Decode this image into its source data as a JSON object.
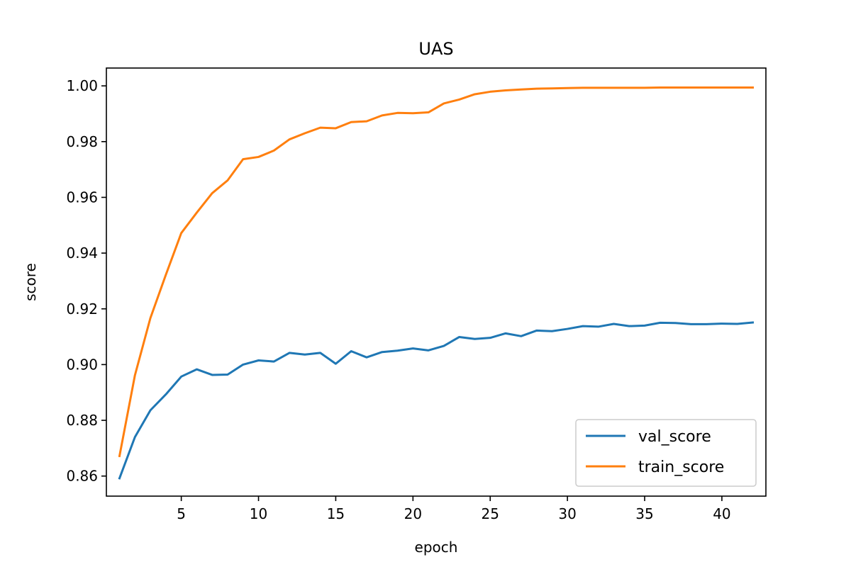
{
  "chart_data": {
    "type": "line",
    "title": "UAS",
    "xlabel": "epoch",
    "ylabel": "score",
    "xlim": [
      0.15,
      42.85
    ],
    "ylim": [
      0.8528,
      1.0064
    ],
    "xticks": [
      5,
      10,
      15,
      20,
      25,
      30,
      35,
      40
    ],
    "yticks": [
      0.86,
      0.88,
      0.9,
      0.92,
      0.94,
      0.96,
      0.98,
      1.0
    ],
    "ytick_labels": [
      "0.86",
      "0.88",
      "0.90",
      "0.92",
      "0.94",
      "0.96",
      "0.98",
      "1.00"
    ],
    "grid": false,
    "legend_position": "lower-right",
    "x": [
      1,
      2,
      3,
      4,
      5,
      6,
      7,
      8,
      9,
      10,
      11,
      12,
      13,
      14,
      15,
      16,
      17,
      18,
      19,
      20,
      21,
      22,
      23,
      24,
      25,
      26,
      27,
      28,
      29,
      30,
      31,
      32,
      33,
      34,
      35,
      36,
      37,
      38,
      39,
      40,
      41,
      42
    ],
    "series": [
      {
        "name": "val_score",
        "color": "#1f77b4",
        "values": [
          0.8592,
          0.874,
          0.8836,
          0.8893,
          0.8957,
          0.8983,
          0.8963,
          0.8964,
          0.9,
          0.9015,
          0.9011,
          0.9042,
          0.9036,
          0.9042,
          0.9003,
          0.9048,
          0.9026,
          0.9045,
          0.905,
          0.9058,
          0.9051,
          0.9067,
          0.9099,
          0.9092,
          0.9096,
          0.9112,
          0.9102,
          0.9122,
          0.912,
          0.9128,
          0.9138,
          0.9136,
          0.9146,
          0.9138,
          0.914,
          0.915,
          0.9149,
          0.9145,
          0.9145,
          0.9147,
          0.9146,
          0.9151
        ]
      },
      {
        "name": "train_score",
        "color": "#ff7f0e",
        "values": [
          0.8672,
          0.8962,
          0.9167,
          0.9322,
          0.9472,
          0.9545,
          0.9615,
          0.9661,
          0.9737,
          0.9745,
          0.9768,
          0.9808,
          0.983,
          0.985,
          0.9848,
          0.987,
          0.9873,
          0.9894,
          0.9903,
          0.9902,
          0.9905,
          0.9937,
          0.9951,
          0.997,
          0.9979,
          0.9984,
          0.9987,
          0.999,
          0.9991,
          0.9992,
          0.9993,
          0.9993,
          0.9993,
          0.9993,
          0.9993,
          0.9994,
          0.9994,
          0.9994,
          0.9994,
          0.9994,
          0.9994,
          0.9994
        ]
      }
    ]
  }
}
